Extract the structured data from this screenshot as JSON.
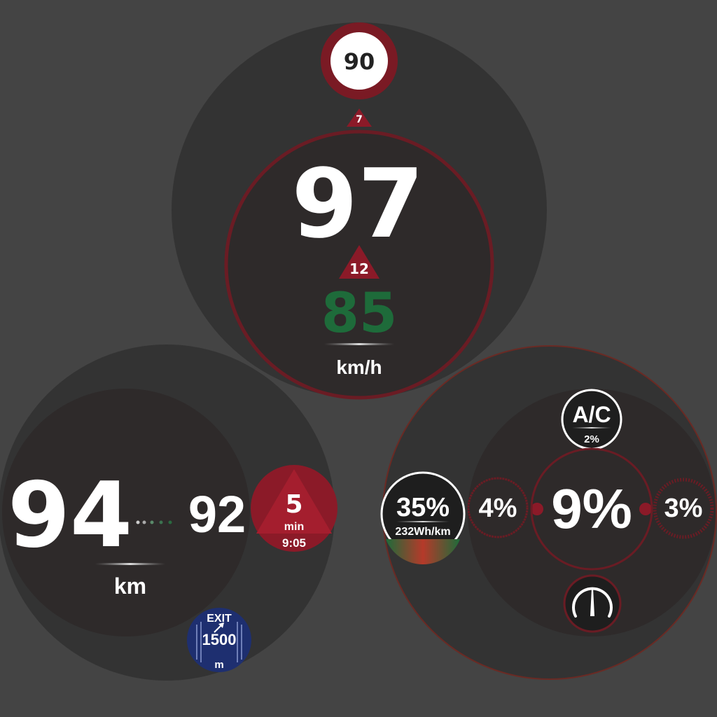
{
  "colors": {
    "background": "#444444",
    "panel": "#333333",
    "panel_inner": "#2e2a2a",
    "accent_red": "#8b1a28",
    "ring_red": "#6a1c24",
    "target_green": "#1e6b3a",
    "exit_blue": "#1e2f70",
    "text": "#ffffff"
  },
  "speed_panel": {
    "speed_limit": "90",
    "limit_delta": "7",
    "current_speed": "97",
    "speed_delta": "12",
    "target_speed": "85",
    "unit": "km/h"
  },
  "range_panel": {
    "range_value": "94",
    "next_charge_value": "92",
    "unit": "km",
    "time_delta": "5",
    "time_unit": "min",
    "arrival_time": "9:05",
    "exit_label": "EXIT",
    "exit_distance": "1500",
    "exit_unit": "m"
  },
  "energy_panel": {
    "ac_label": "A/C",
    "ac_percent": "2%",
    "battery_percent": "35%",
    "consumption": "232Wh/km",
    "left_percent": "4%",
    "center_percent": "9%",
    "right_percent": "3%",
    "gauge_icon": "speedometer-icon"
  }
}
